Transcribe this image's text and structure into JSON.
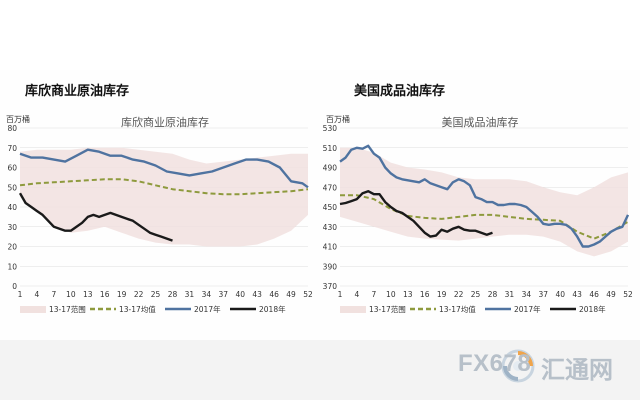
{
  "titles": {
    "left": "库欣商业原油库存",
    "right": "美国成品油库存"
  },
  "watermark": {
    "brand": "FX678",
    "brand_cn": "汇通网",
    "icon": "swirl-logo-icon"
  },
  "colors": {
    "range_band": "#f1e1df",
    "avg_line": "#8e9a3d",
    "y2017_line": "#4f73a0",
    "y2018_line": "#1a1a1a",
    "grid": "#dddddd",
    "logo": "#b7c0c9"
  },
  "chart_data": [
    {
      "type": "line",
      "title": "库欣商业原油库存",
      "ylabel": "百万桶",
      "ylim": [
        0,
        80
      ],
      "yticks": [
        0,
        10,
        20,
        30,
        40,
        50,
        60,
        70,
        80
      ],
      "xlim": [
        1,
        52
      ],
      "xticks": [
        1,
        4,
        7,
        10,
        13,
        16,
        19,
        22,
        25,
        28,
        31,
        34,
        37,
        40,
        43,
        46,
        49,
        52
      ],
      "legend_position": "bottom",
      "legend": [
        "13-17范围",
        "13-17均值",
        "2017年",
        "2018年"
      ],
      "range_band": {
        "name": "13-17范围",
        "x": [
          1,
          4,
          7,
          10,
          13,
          16,
          19,
          22,
          25,
          28,
          31,
          34,
          37,
          40,
          43,
          46,
          49,
          52
        ],
        "lower": [
          45,
          38,
          30,
          27,
          28,
          30,
          27,
          24,
          22,
          21,
          21,
          20,
          20,
          20,
          21,
          24,
          28,
          36
        ],
        "upper": [
          68,
          69,
          69,
          69,
          70,
          70,
          70,
          69,
          68,
          67,
          64,
          62,
          63,
          64,
          65,
          66,
          67,
          67
        ]
      },
      "series": [
        {
          "name": "13-17均值",
          "style": "dashed",
          "x": [
            1,
            4,
            7,
            10,
            13,
            16,
            19,
            22,
            25,
            28,
            31,
            34,
            37,
            40,
            43,
            46,
            49,
            52
          ],
          "values": [
            51,
            52,
            52.5,
            53,
            53.5,
            54,
            54,
            53,
            51,
            49,
            48,
            47,
            46.5,
            46.5,
            47,
            47.5,
            48,
            49
          ]
        },
        {
          "name": "2017年",
          "style": "solid",
          "x": [
            1,
            3,
            5,
            7,
            9,
            11,
            13,
            15,
            17,
            19,
            21,
            23,
            25,
            27,
            29,
            31,
            33,
            35,
            37,
            39,
            41,
            43,
            45,
            47,
            49,
            51,
            52
          ],
          "values": [
            67,
            65,
            65,
            64,
            63,
            66,
            69,
            68,
            66,
            66,
            64,
            63,
            61,
            58,
            57,
            56,
            57,
            58,
            60,
            62,
            64,
            64,
            63,
            60,
            53,
            52,
            50
          ]
        },
        {
          "name": "2018年",
          "style": "solid",
          "x": [
            1,
            2,
            3,
            4,
            5,
            6,
            7,
            8,
            9,
            10,
            11,
            12,
            13,
            14,
            15,
            16,
            17,
            18,
            19,
            20,
            21,
            22,
            23,
            24,
            25,
            26,
            27,
            28
          ],
          "values": [
            47,
            42,
            40,
            38,
            36,
            33,
            30,
            29,
            28,
            28,
            30,
            32,
            35,
            36,
            35,
            36,
            37,
            36,
            35,
            34,
            33,
            31,
            29,
            27,
            26,
            25,
            24,
            23
          ]
        }
      ]
    },
    {
      "type": "line",
      "title": "美国成品油库存",
      "ylabel": "百万桶",
      "ylim": [
        370,
        530
      ],
      "yticks": [
        370,
        390,
        410,
        430,
        450,
        470,
        490,
        510,
        530
      ],
      "xlim": [
        1,
        52
      ],
      "xticks": [
        1,
        4,
        7,
        10,
        13,
        16,
        19,
        22,
        25,
        28,
        31,
        34,
        37,
        40,
        43,
        46,
        49,
        52
      ],
      "legend_position": "bottom",
      "legend": [
        "13-17范围",
        "13-17均值",
        "2017年",
        "2018年"
      ],
      "range_band": {
        "name": "13-17范围",
        "x": [
          1,
          4,
          7,
          10,
          13,
          16,
          19,
          22,
          25,
          28,
          31,
          34,
          37,
          40,
          43,
          46,
          49,
          52
        ],
        "lower": [
          440,
          435,
          430,
          425,
          420,
          418,
          417,
          416,
          418,
          420,
          422,
          422,
          420,
          415,
          405,
          400,
          405,
          415
        ],
        "upper": [
          510,
          510,
          505,
          495,
          490,
          488,
          485,
          480,
          478,
          478,
          478,
          476,
          470,
          465,
          462,
          470,
          480,
          485
        ]
      },
      "series": [
        {
          "name": "13-17均值",
          "style": "dashed",
          "x": [
            1,
            4,
            7,
            10,
            13,
            16,
            19,
            22,
            25,
            28,
            31,
            34,
            37,
            40,
            43,
            46,
            49,
            52
          ],
          "values": [
            462,
            462,
            458,
            448,
            441,
            439,
            438,
            440,
            442,
            442,
            440,
            438,
            437,
            436,
            425,
            418,
            425,
            435
          ]
        },
        {
          "name": "2017年",
          "style": "solid",
          "x": [
            1,
            2,
            3,
            4,
            5,
            6,
            7,
            8,
            9,
            10,
            11,
            12,
            13,
            14,
            15,
            16,
            17,
            18,
            19,
            20,
            21,
            22,
            23,
            24,
            25,
            26,
            27,
            28,
            29,
            30,
            31,
            32,
            33,
            34,
            35,
            36,
            37,
            38,
            39,
            40,
            41,
            42,
            43,
            44,
            45,
            46,
            47,
            48,
            49,
            50,
            51,
            52
          ],
          "values": [
            496,
            500,
            508,
            510,
            509,
            512,
            504,
            500,
            490,
            484,
            480,
            478,
            477,
            476,
            475,
            478,
            474,
            472,
            470,
            468,
            475,
            478,
            476,
            472,
            460,
            458,
            455,
            455,
            452,
            452,
            453,
            453,
            452,
            450,
            445,
            440,
            433,
            432,
            433,
            433,
            432,
            428,
            420,
            410,
            410,
            412,
            415,
            420,
            425,
            428,
            430,
            442
          ]
        },
        {
          "name": "2018年",
          "style": "solid",
          "x": [
            1,
            2,
            3,
            4,
            5,
            6,
            7,
            8,
            9,
            10,
            11,
            12,
            13,
            14,
            15,
            16,
            17,
            18,
            19,
            20,
            21,
            22,
            23,
            24,
            25,
            26,
            27,
            28
          ],
          "values": [
            453,
            454,
            456,
            458,
            464,
            466,
            463,
            463,
            455,
            450,
            446,
            444,
            440,
            436,
            430,
            424,
            420,
            421,
            427,
            425,
            428,
            430,
            427,
            426,
            426,
            424,
            422,
            424
          ]
        }
      ]
    }
  ]
}
